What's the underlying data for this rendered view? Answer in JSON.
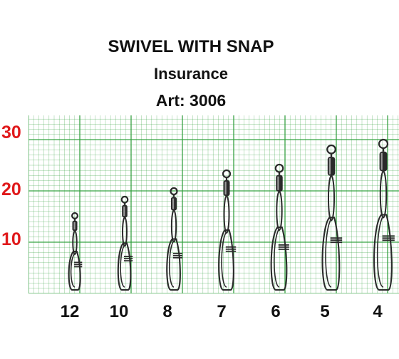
{
  "title": "SWIVEL WITH SNAP",
  "subtitle": "Insurance",
  "article": "Art: 3006",
  "scale_labels": [
    "30",
    "20",
    "10"
  ],
  "size_labels": [
    "12",
    "10",
    "8",
    "7",
    "6",
    "5",
    "4"
  ],
  "colors": {
    "grid": "#2e9e3a",
    "scale": "#e0191b",
    "metal": "#2a2a2a"
  }
}
